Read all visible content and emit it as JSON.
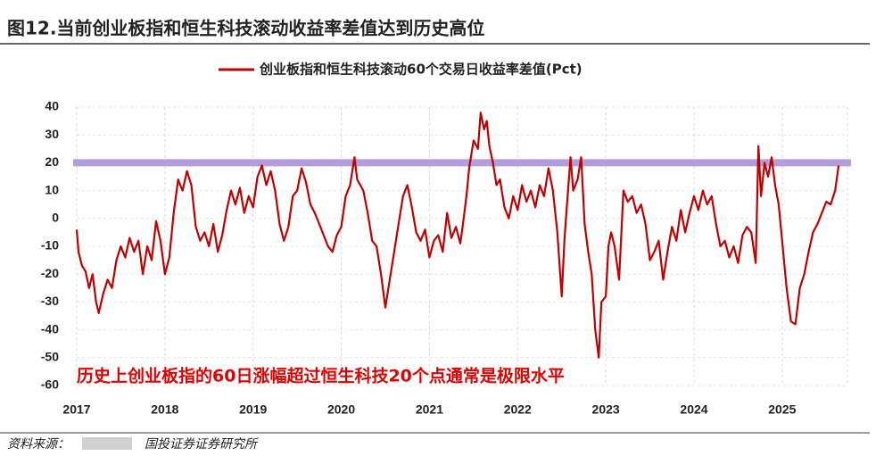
{
  "chart_data": {
    "type": "line",
    "title": "图12.当前创业板指和恒生科技滚动收益率差值达到历史高位",
    "source": "资料来源：",
    "source_org": "国投证券证券研究所",
    "annotation": "历史上创业板指的60日涨幅超过恒生科技20个点通常是极限水平",
    "reference_line": {
      "value": 20,
      "color": "#b39ddb"
    },
    "xlim": [
      2017,
      2025.74
    ],
    "xticks": [
      2017,
      2018,
      2019,
      2020,
      2021,
      2022,
      2023,
      2024,
      2025
    ],
    "ylim": [
      -60,
      40
    ],
    "yticks": [
      -60,
      -50,
      -40,
      -30,
      -20,
      -10,
      0,
      10,
      20,
      30,
      40
    ],
    "grid": true,
    "series": [
      {
        "name": "创业板指和恒生科技滚动60个交易日收益率差值(Pct)",
        "color": "#c00000",
        "x": [
          2017.0,
          2017.02,
          2017.06,
          2017.1,
          2017.14,
          2017.18,
          2017.22,
          2017.25,
          2017.3,
          2017.35,
          2017.4,
          2017.45,
          2017.5,
          2017.55,
          2017.6,
          2017.65,
          2017.7,
          2017.75,
          2017.8,
          2017.85,
          2017.9,
          2017.95,
          2018.0,
          2018.05,
          2018.1,
          2018.15,
          2018.2,
          2018.25,
          2018.3,
          2018.35,
          2018.4,
          2018.45,
          2018.5,
          2018.55,
          2018.6,
          2018.65,
          2018.7,
          2018.75,
          2018.8,
          2018.85,
          2018.9,
          2018.95,
          2019.0,
          2019.05,
          2019.1,
          2019.15,
          2019.2,
          2019.25,
          2019.3,
          2019.35,
          2019.4,
          2019.45,
          2019.5,
          2019.55,
          2019.6,
          2019.65,
          2019.7,
          2019.75,
          2019.8,
          2019.85,
          2019.9,
          2019.95,
          2020.0,
          2020.05,
          2020.1,
          2020.15,
          2020.18,
          2020.25,
          2020.3,
          2020.35,
          2020.4,
          2020.45,
          2020.5,
          2020.55,
          2020.6,
          2020.65,
          2020.7,
          2020.75,
          2020.8,
          2020.85,
          2020.9,
          2020.95,
          2021.0,
          2021.05,
          2021.1,
          2021.15,
          2021.2,
          2021.25,
          2021.3,
          2021.35,
          2021.38,
          2021.42,
          2021.45,
          2021.5,
          2021.55,
          2021.58,
          2021.62,
          2021.65,
          2021.68,
          2021.72,
          2021.76,
          2021.8,
          2021.85,
          2021.9,
          2021.95,
          2022.0,
          2022.05,
          2022.1,
          2022.15,
          2022.2,
          2022.25,
          2022.3,
          2022.35,
          2022.4,
          2022.45,
          2022.5,
          2022.53,
          2022.56,
          2022.6,
          2022.63,
          2022.68,
          2022.72,
          2022.76,
          2022.8,
          2022.84,
          2022.88,
          2022.92,
          2022.95,
          2023.0,
          2023.03,
          2023.06,
          2023.1,
          2023.15,
          2023.2,
          2023.25,
          2023.3,
          2023.35,
          2023.4,
          2023.45,
          2023.5,
          2023.55,
          2023.6,
          2023.65,
          2023.7,
          2023.75,
          2023.8,
          2023.85,
          2023.9,
          2023.95,
          2024.0,
          2024.05,
          2024.1,
          2024.15,
          2024.2,
          2024.25,
          2024.3,
          2024.35,
          2024.4,
          2024.45,
          2024.5,
          2024.55,
          2024.6,
          2024.65,
          2024.7,
          2024.73,
          2024.76,
          2024.8,
          2024.84,
          2024.88,
          2024.92,
          2024.96,
          2025.0,
          2025.05,
          2025.1,
          2025.15,
          2025.2,
          2025.25,
          2025.3,
          2025.35,
          2025.4,
          2025.45,
          2025.5,
          2025.55,
          2025.6,
          2025.64
        ],
        "values": [
          -4,
          -12,
          -17,
          -19,
          -25,
          -20,
          -30,
          -34,
          -27,
          -22,
          -25,
          -15,
          -10,
          -14,
          -7,
          -12,
          -8,
          -20,
          -10,
          -15,
          -1,
          -8,
          -20,
          -14,
          2,
          14,
          10,
          17,
          12,
          -3,
          -8,
          -5,
          -10,
          -2,
          -12,
          -6,
          3,
          10,
          5,
          11,
          2,
          8,
          4,
          15,
          19,
          12,
          17,
          10,
          -2,
          -8,
          -3,
          8,
          10,
          18,
          13,
          5,
          2,
          -2,
          -6,
          -10,
          -12,
          -6,
          -3,
          8,
          12,
          22,
          14,
          10,
          2,
          -8,
          -10,
          -20,
          -32,
          -22,
          -12,
          -2,
          8,
          12,
          4,
          -5,
          -8,
          -4,
          -14,
          -8,
          -6,
          -12,
          2,
          -7,
          -3,
          -9,
          -2,
          8,
          18,
          28,
          25,
          38,
          32,
          35,
          26,
          20,
          12,
          14,
          4,
          0,
          8,
          3,
          12,
          6,
          10,
          4,
          12,
          8,
          18,
          10,
          -5,
          -28,
          -8,
          5,
          22,
          10,
          14,
          22,
          -2,
          -12,
          -20,
          -40,
          -50,
          -30,
          -28,
          -10,
          -5,
          -10,
          -22,
          10,
          6,
          8,
          2,
          5,
          -2,
          -15,
          -12,
          -8,
          -22,
          -12,
          -3,
          -8,
          3,
          -5,
          2,
          8,
          3,
          10,
          5,
          8,
          -2,
          -10,
          -8,
          -14,
          -10,
          -16,
          -6,
          -3,
          -5,
          -16,
          26,
          8,
          20,
          15,
          22,
          12,
          5,
          -8,
          -25,
          -37,
          -38,
          -25,
          -20,
          -12,
          -5,
          -2,
          2,
          6,
          5,
          10,
          19
        ]
      }
    ]
  }
}
